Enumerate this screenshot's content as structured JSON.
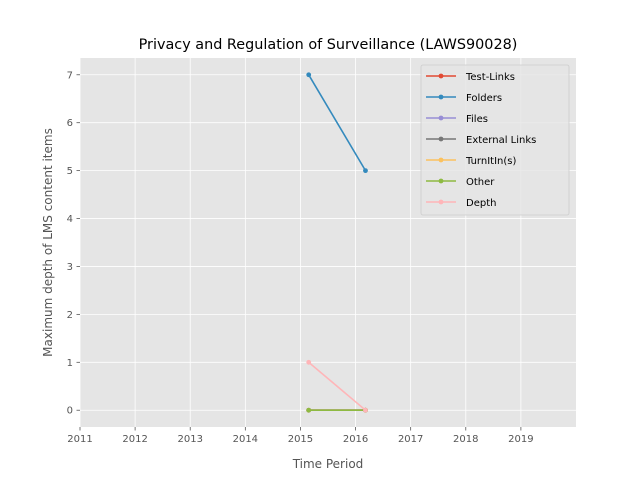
{
  "chart_data": {
    "type": "line",
    "title": "Privacy and Regulation of Surveillance (LAWS90028)",
    "xlabel": "Time Period",
    "ylabel": "Maximum depth of LMS content items",
    "xlim": [
      2011,
      2020
    ],
    "ylim": [
      -0.35,
      7.35
    ],
    "x_ticks": [
      2011,
      2012,
      2013,
      2014,
      2015,
      2016,
      2017,
      2018,
      2019
    ],
    "y_ticks": [
      0,
      1,
      2,
      3,
      4,
      5,
      6,
      7
    ],
    "grid": true,
    "legend_position": "top-right",
    "x": [
      2015.15,
      2016.18
    ],
    "series": [
      {
        "name": "Test-Links",
        "color": "#E24A33",
        "values": [
          0,
          0
        ]
      },
      {
        "name": "Folders",
        "color": "#348ABD",
        "values": [
          7,
          5
        ]
      },
      {
        "name": "Files",
        "color": "#988ED5",
        "values": [
          0,
          0
        ]
      },
      {
        "name": "External Links",
        "color": "#777777",
        "values": [
          0,
          0
        ]
      },
      {
        "name": "TurnItIn(s)",
        "color": "#FBC15E",
        "values": [
          0,
          0
        ]
      },
      {
        "name": "Other",
        "color": "#8EBA42",
        "values": [
          0,
          0
        ]
      },
      {
        "name": "Depth",
        "color": "#FFB5B8",
        "values": [
          1,
          0
        ]
      }
    ]
  }
}
